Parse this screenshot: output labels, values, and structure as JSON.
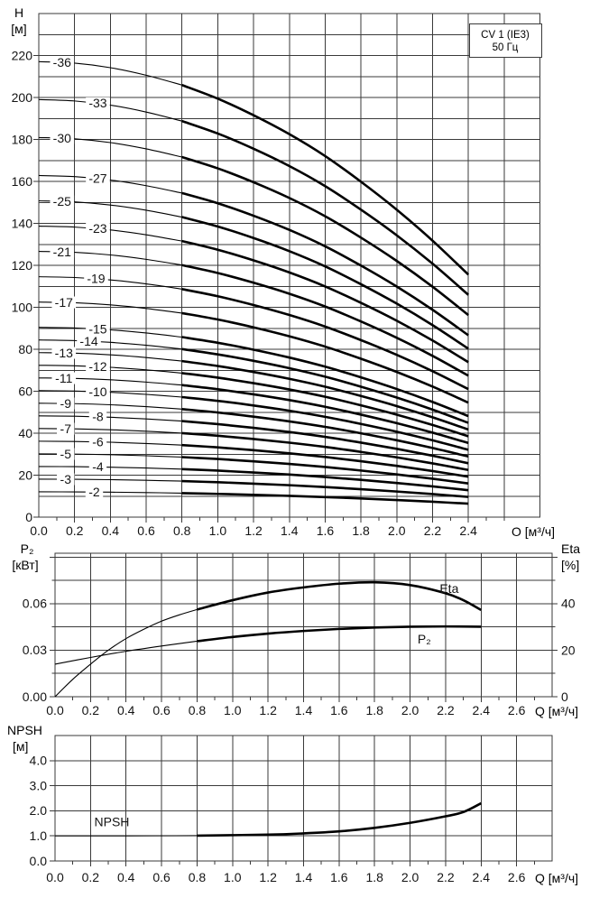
{
  "title_box": {
    "line1": "CV 1 (IE3)",
    "line2": "50 Гц"
  },
  "colors": {
    "grid": "#3a3a3a",
    "curve": "#000000",
    "text": "#141414",
    "background": "#ffffff"
  },
  "chart_data": [
    {
      "id": "head_flow",
      "type": "line",
      "title": "Pump head vs flow, curves per number of stages",
      "y_axis": {
        "title_line1": "H",
        "title_line2": "[м]",
        "min": 0,
        "max": 240,
        "grid_step": 10,
        "tick_labels": [
          {
            "v": 0,
            "t": "0"
          },
          {
            "v": 20,
            "t": "20"
          },
          {
            "v": 40,
            "t": "40"
          },
          {
            "v": 60,
            "t": "60"
          },
          {
            "v": 80,
            "t": "80"
          },
          {
            "v": 100,
            "t": "100"
          },
          {
            "v": 120,
            "t": "120"
          },
          {
            "v": 140,
            "t": "140"
          },
          {
            "v": 160,
            "t": "160"
          },
          {
            "v": 180,
            "t": "180"
          },
          {
            "v": 200,
            "t": "200"
          },
          {
            "v": 220,
            "t": "220"
          }
        ]
      },
      "x_axis": {
        "unit_label": "O [м³/ч]",
        "min": 0,
        "max": 2.8,
        "grid_step": 0.2,
        "minor_tick_step": 0.1,
        "minor_tick_max": 2.6,
        "tick_labels": [
          {
            "v": 0.0,
            "t": "0.0"
          },
          {
            "v": 0.2,
            "t": "0.2"
          },
          {
            "v": 0.4,
            "t": "0.4"
          },
          {
            "v": 0.6,
            "t": "0.6"
          },
          {
            "v": 0.8,
            "t": "0.8"
          },
          {
            "v": 1.0,
            "t": "1.0"
          },
          {
            "v": 1.2,
            "t": "1.2"
          },
          {
            "v": 1.4,
            "t": "1.4"
          },
          {
            "v": 1.6,
            "t": "1.6"
          },
          {
            "v": 1.8,
            "t": "1.8"
          },
          {
            "v": 2.0,
            "t": "2.0"
          },
          {
            "v": 2.2,
            "t": "2.2"
          },
          {
            "v": 2.4,
            "t": "2.4"
          }
        ]
      },
      "stage_curves": {
        "q_samples": [
          0,
          0.2,
          0.4,
          0.6,
          0.8,
          1.0,
          1.2,
          1.4,
          1.6,
          1.8,
          2.0,
          2.2,
          2.4
        ],
        "per_stage_head": [
          6.03,
          6.01,
          5.95,
          5.85,
          5.72,
          5.54,
          5.32,
          5.07,
          4.78,
          4.44,
          4.07,
          3.66,
          3.21
        ],
        "bold_from_q": 0.8,
        "curves": [
          {
            "label": "-36",
            "stages": 36,
            "label_q": 0.13
          },
          {
            "label": "-33",
            "stages": 33,
            "label_q": 0.33
          },
          {
            "label": "-30",
            "stages": 30,
            "label_q": 0.13
          },
          {
            "label": "-27",
            "stages": 27,
            "label_q": 0.33
          },
          {
            "label": "-25",
            "stages": 25,
            "label_q": 0.13
          },
          {
            "label": "-23",
            "stages": 23,
            "label_q": 0.33
          },
          {
            "label": "-21",
            "stages": 21,
            "label_q": 0.13
          },
          {
            "label": "-19",
            "stages": 19,
            "label_q": 0.32
          },
          {
            "label": "-17",
            "stages": 17,
            "label_q": 0.14
          },
          {
            "label": "-15",
            "stages": 15,
            "label_q": 0.33
          },
          {
            "label": "-14",
            "stages": 14,
            "label_q": 0.28
          },
          {
            "label": "-13",
            "stages": 13,
            "label_q": 0.14
          },
          {
            "label": "-12",
            "stages": 12,
            "label_q": 0.33
          },
          {
            "label": "-11",
            "stages": 11,
            "label_q": 0.14
          },
          {
            "label": "-10",
            "stages": 10,
            "label_q": 0.33
          },
          {
            "label": "-9",
            "stages": 9,
            "label_q": 0.15
          },
          {
            "label": "-8",
            "stages": 8,
            "label_q": 0.33
          },
          {
            "label": "-7",
            "stages": 7,
            "label_q": 0.15
          },
          {
            "label": "-6",
            "stages": 6,
            "label_q": 0.33
          },
          {
            "label": "-5",
            "stages": 5,
            "label_q": 0.15
          },
          {
            "label": "-4",
            "stages": 4,
            "label_q": 0.33
          },
          {
            "label": "-3",
            "stages": 3,
            "label_q": 0.15
          },
          {
            "label": "-2",
            "stages": 2,
            "label_q": 0.31
          }
        ]
      }
    },
    {
      "id": "power_eta_flow",
      "type": "line",
      "title": "Shaft power and efficiency vs flow",
      "left_axis": {
        "title_line1": "P₂",
        "title_line2": "[кВт]",
        "min": 0,
        "max": 0.0925,
        "grid_step": 0.015,
        "tick_labels": [
          {
            "v": 0,
            "t": "0.00"
          },
          {
            "v": 0.03,
            "t": "0.03"
          },
          {
            "v": 0.06,
            "t": "0.06"
          }
        ]
      },
      "right_axis": {
        "title_line1": "Eta",
        "title_line2": "[%]",
        "min": 0,
        "max": 61.7,
        "tick_step": 10,
        "tick_labels": [
          {
            "v": 0,
            "t": "0"
          },
          {
            "v": 20,
            "t": "20"
          },
          {
            "v": 40,
            "t": "40"
          }
        ]
      },
      "x_axis": {
        "unit_label": "Q [м³/ч]",
        "min": 0,
        "max": 2.8,
        "grid_step": 0.2,
        "minor_tick_step": 0.1,
        "minor_tick_max": 2.7,
        "tick_labels": [
          {
            "v": 0.0,
            "t": "0.0"
          },
          {
            "v": 0.2,
            "t": "0.2"
          },
          {
            "v": 0.4,
            "t": "0.4"
          },
          {
            "v": 0.6,
            "t": "0.6"
          },
          {
            "v": 0.8,
            "t": "0.8"
          },
          {
            "v": 1.0,
            "t": "1.0"
          },
          {
            "v": 1.2,
            "t": "1.2"
          },
          {
            "v": 1.4,
            "t": "1.4"
          },
          {
            "v": 1.6,
            "t": "1.6"
          },
          {
            "v": 1.8,
            "t": "1.8"
          },
          {
            "v": 2.0,
            "t": "2.0"
          },
          {
            "v": 2.2,
            "t": "2.2"
          },
          {
            "v": 2.4,
            "t": "2.4"
          },
          {
            "v": 2.6,
            "t": "2.6"
          }
        ]
      },
      "bold_from_q": 0.8,
      "series": [
        {
          "name": "Eta",
          "label": "Eta",
          "scale": "eta",
          "label_at": {
            "q": 2.22,
            "v": 46.5
          },
          "points": [
            [
              0,
              0
            ],
            [
              0.1,
              7.5
            ],
            [
              0.2,
              14
            ],
            [
              0.3,
              20
            ],
            [
              0.4,
              25
            ],
            [
              0.5,
              29
            ],
            [
              0.6,
              32.5
            ],
            [
              0.7,
              35.2
            ],
            [
              0.8,
              37.5
            ],
            [
              1.0,
              41.5
            ],
            [
              1.2,
              44.8
            ],
            [
              1.4,
              47
            ],
            [
              1.6,
              48.6
            ],
            [
              1.8,
              49.2
            ],
            [
              2.0,
              48
            ],
            [
              2.2,
              44.5
            ],
            [
              2.3,
              41.5
            ],
            [
              2.4,
              37.3
            ]
          ]
        },
        {
          "name": "P2",
          "label": "P₂",
          "scale": "p2",
          "label_at": {
            "q": 2.08,
            "v": 0.0372
          },
          "points": [
            [
              0,
              0.021
            ],
            [
              0.2,
              0.0253
            ],
            [
              0.4,
              0.0293
            ],
            [
              0.6,
              0.0327
            ],
            [
              0.8,
              0.0358
            ],
            [
              1.0,
              0.0385
            ],
            [
              1.2,
              0.0407
            ],
            [
              1.4,
              0.0424
            ],
            [
              1.6,
              0.0437
            ],
            [
              1.8,
              0.0446
            ],
            [
              2.0,
              0.0451
            ],
            [
              2.2,
              0.0453
            ],
            [
              2.4,
              0.0451
            ]
          ]
        }
      ]
    },
    {
      "id": "npsh_flow",
      "type": "line",
      "title": "NPSH vs flow",
      "y_axis": {
        "title_line1": "NPSH",
        "title_line2": "[м]",
        "min": 0,
        "max": 5,
        "grid_step": 1,
        "tick_labels": [
          {
            "v": 0,
            "t": "0.0"
          },
          {
            "v": 1,
            "t": "1.0"
          },
          {
            "v": 2,
            "t": "2.0"
          },
          {
            "v": 3,
            "t": "3.0"
          },
          {
            "v": 4,
            "t": "4.0"
          }
        ]
      },
      "x_axis": {
        "unit_label": "Q [м³/ч]",
        "min": 0,
        "max": 2.8,
        "grid_step": 0.2,
        "minor_tick_step": 0.1,
        "minor_tick_max": 2.7,
        "tick_labels": [
          {
            "v": 0.0,
            "t": "0.0"
          },
          {
            "v": 0.2,
            "t": "0.2"
          },
          {
            "v": 0.4,
            "t": "0.4"
          },
          {
            "v": 0.6,
            "t": "0.6"
          },
          {
            "v": 0.8,
            "t": "0.8"
          },
          {
            "v": 1.0,
            "t": "1.0"
          },
          {
            "v": 1.2,
            "t": "1.2"
          },
          {
            "v": 1.4,
            "t": "1.4"
          },
          {
            "v": 1.6,
            "t": "1.6"
          },
          {
            "v": 1.8,
            "t": "1.8"
          },
          {
            "v": 2.0,
            "t": "2.0"
          },
          {
            "v": 2.2,
            "t": "2.2"
          },
          {
            "v": 2.4,
            "t": "2.4"
          },
          {
            "v": 2.6,
            "t": "2.6"
          }
        ]
      },
      "bold_from_q": 0.8,
      "series": [
        {
          "name": "NPSH",
          "label": "NPSH",
          "scale": "y",
          "label_at": {
            "q": 0.32,
            "v": 1.55
          },
          "points": [
            [
              0,
              1.0
            ],
            [
              0.4,
              1.0
            ],
            [
              0.8,
              1.01
            ],
            [
              1.2,
              1.05
            ],
            [
              1.4,
              1.1
            ],
            [
              1.6,
              1.18
            ],
            [
              1.8,
              1.32
            ],
            [
              2.0,
              1.52
            ],
            [
              2.2,
              1.78
            ],
            [
              2.3,
              1.95
            ],
            [
              2.4,
              2.3
            ]
          ]
        }
      ]
    }
  ]
}
